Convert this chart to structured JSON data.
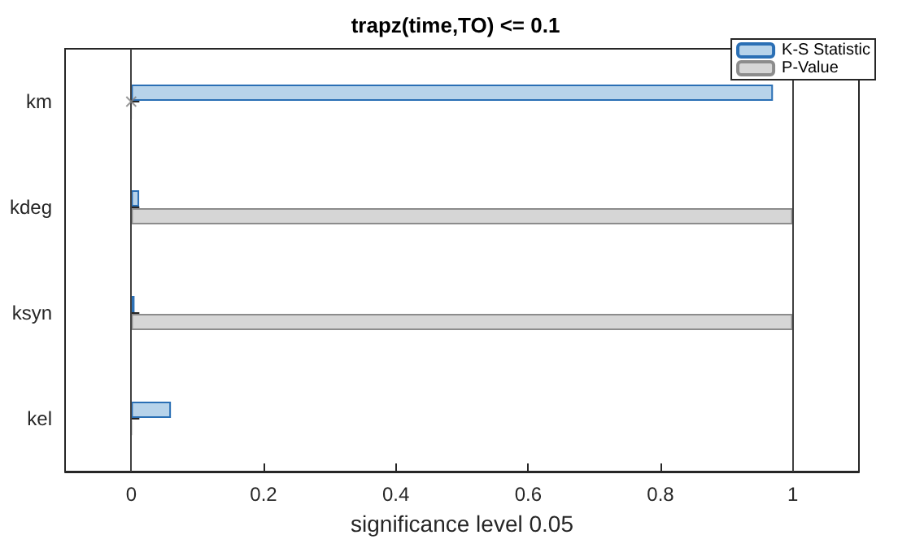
{
  "chart_data": {
    "type": "bar",
    "orientation": "horizontal",
    "title": "trapz(time,TO) <= 0.1",
    "xlabel": "significance level 0.05",
    "categories": [
      "km",
      "kdeg",
      "ksyn",
      "kel"
    ],
    "series": [
      {
        "name": "K-S Statistic",
        "color": "#b7d3ea",
        "values": [
          0.97,
          0.012,
          0.005,
          0.06
        ]
      },
      {
        "name": "P-Value",
        "color": "#d6d6d6",
        "values": [
          0,
          1,
          1,
          0.002
        ]
      },
      {
        "type": "scatter",
        "color": "#808080",
        "marker": "cross",
        "x": [
          "km"
        ],
        "values": [
          0
        ]
      }
    ],
    "xlim": [
      -0.1,
      1.1
    ],
    "xticks": [
      0,
      0.2,
      0.4,
      0.6,
      0.8,
      1
    ],
    "ref_lines": [
      {
        "axis": "x",
        "value": 0,
        "color": "#404040"
      },
      {
        "axis": "x",
        "value": 1,
        "color": "#404040"
      }
    ],
    "grid": false,
    "legend": "top right"
  }
}
